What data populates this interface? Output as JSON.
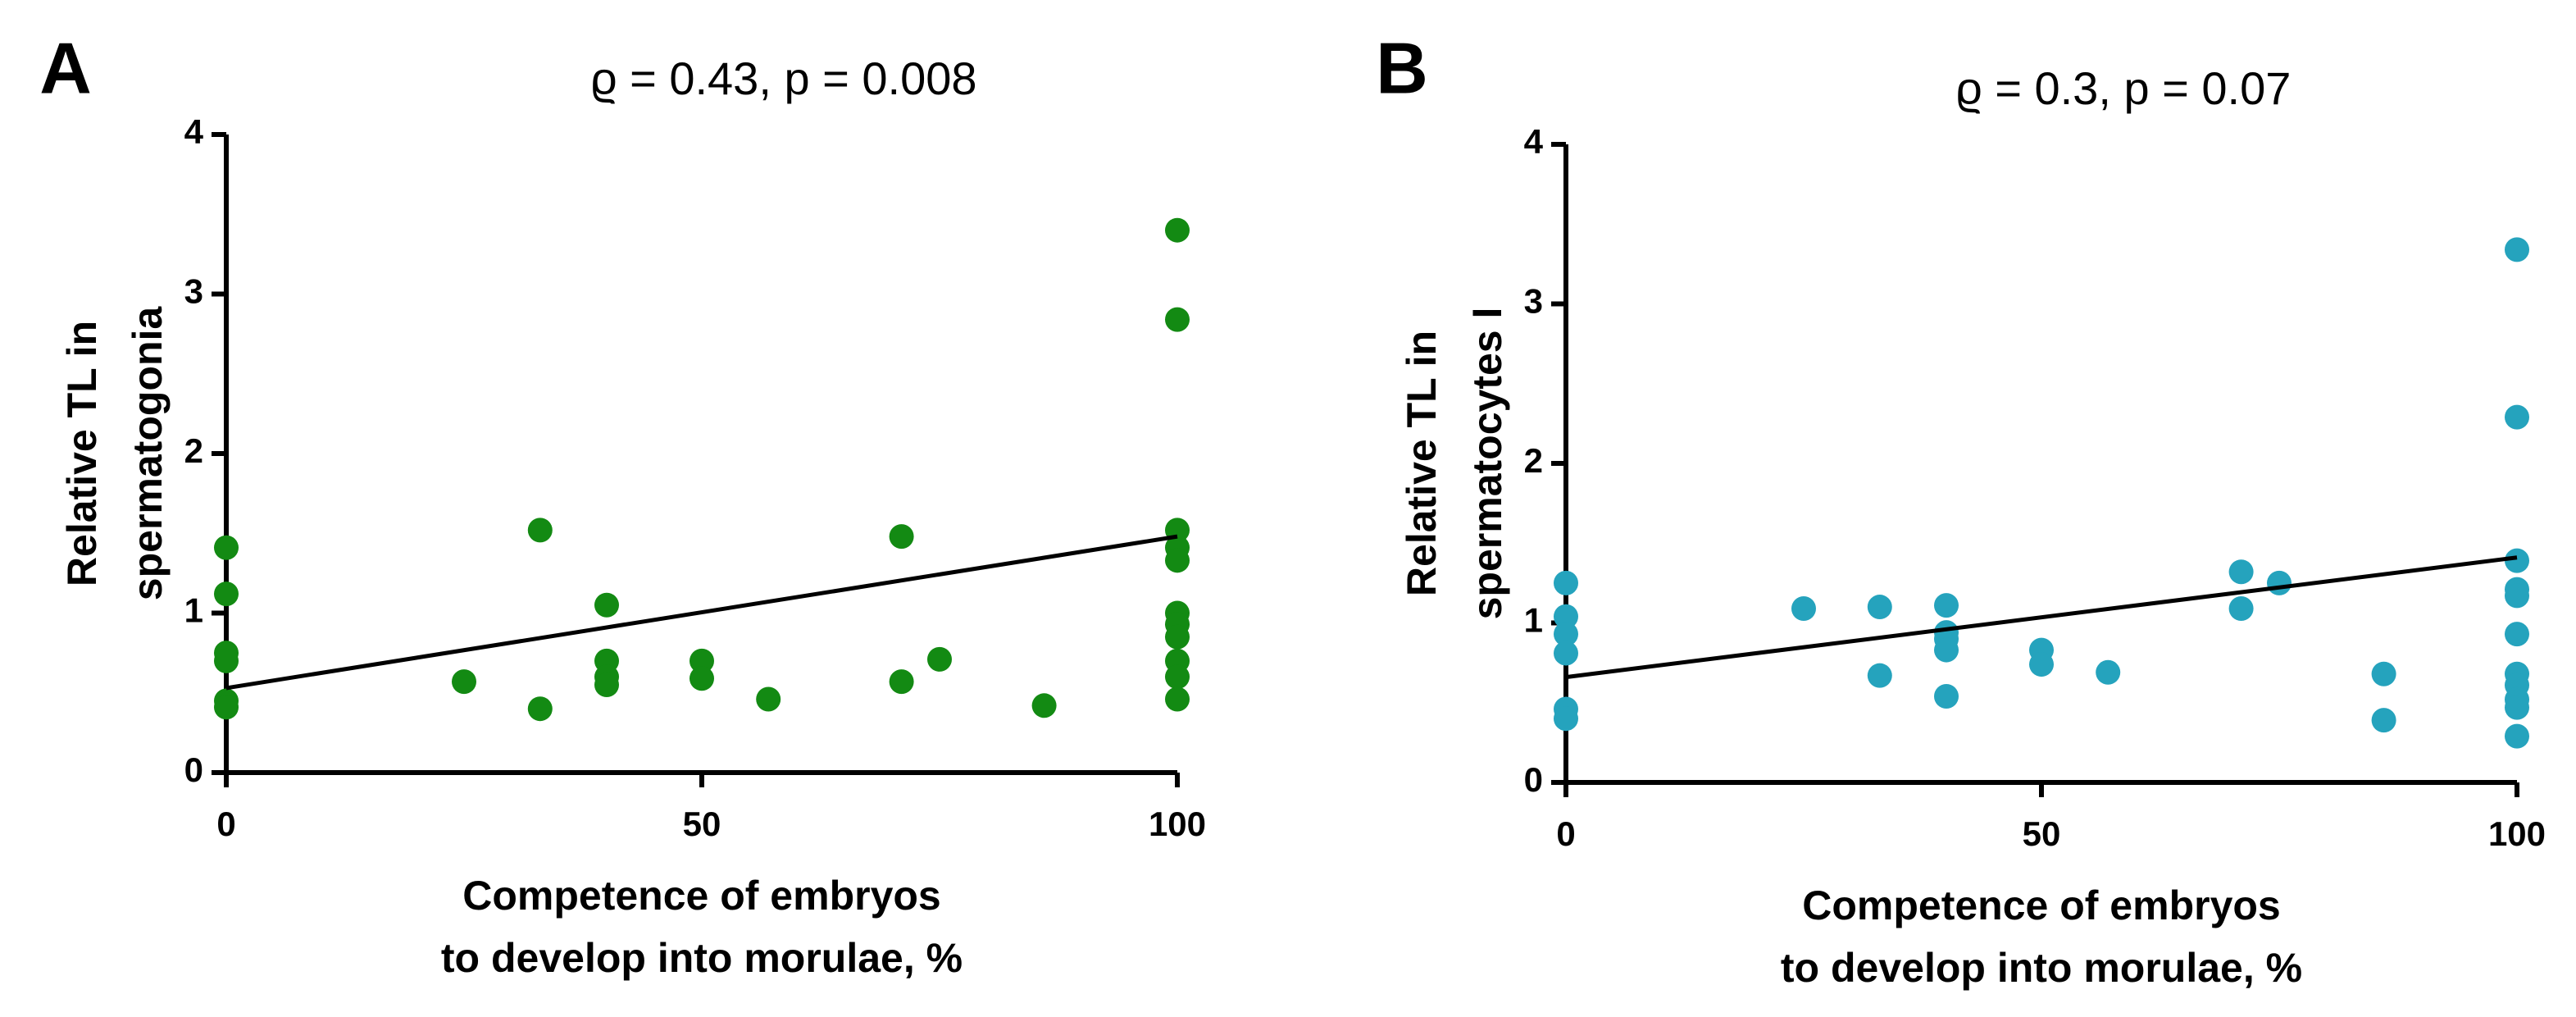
{
  "chart_data": [
    {
      "type": "scatter",
      "panel": "A",
      "title": "ϱ = 0.43, p = 0.008",
      "xlabel": [
        "Competence of embryos",
        "to develop into morulae, %"
      ],
      "ylabel": [
        "Relative TL in",
        "spermatogonia"
      ],
      "color": "#138a13",
      "x": [
        0,
        0,
        0,
        0,
        0,
        0,
        25,
        33,
        33,
        40,
        40,
        40,
        40,
        50,
        50,
        57,
        71,
        71,
        75,
        86,
        100,
        100,
        100,
        100,
        100,
        100,
        100,
        100,
        100,
        100,
        100
      ],
      "values": [
        1.41,
        1.12,
        0.75,
        0.7,
        0.45,
        0.41,
        0.57,
        1.52,
        0.4,
        1.05,
        0.7,
        0.6,
        0.55,
        0.7,
        0.59,
        0.46,
        1.48,
        0.57,
        0.71,
        0.42,
        3.4,
        2.84,
        1.52,
        1.41,
        1.33,
        1.0,
        0.93,
        0.85,
        0.7,
        0.6,
        0.46
      ],
      "fit": {
        "x": [
          0,
          100
        ],
        "y": [
          0.53,
          1.48
        ]
      },
      "xlim": [
        0,
        100
      ],
      "xticks": [
        0,
        50,
        100
      ],
      "ylim": [
        0,
        4
      ],
      "yticks": [
        0,
        1,
        2,
        3,
        4
      ]
    },
    {
      "type": "scatter",
      "panel": "B",
      "title": "ϱ = 0.3, p = 0.07",
      "xlabel": [
        "Competence of embryos",
        "to develop into morulae, %"
      ],
      "ylabel": [
        "Relative TL in",
        "spermatocytes I"
      ],
      "color": "#25a3bd",
      "x": [
        0,
        0,
        0,
        0,
        0,
        0,
        25,
        33,
        33,
        40,
        40,
        40,
        40,
        40,
        50,
        50,
        57,
        71,
        71,
        75,
        86,
        86,
        100,
        100,
        100,
        100,
        100,
        100,
        100,
        100,
        100,
        100,
        100
      ],
      "values": [
        1.25,
        1.04,
        0.93,
        0.81,
        0.46,
        0.4,
        1.09,
        1.1,
        0.67,
        1.11,
        0.94,
        0.9,
        0.83,
        0.54,
        0.83,
        0.74,
        0.69,
        1.32,
        1.09,
        1.25,
        0.68,
        0.39,
        3.34,
        2.29,
        1.39,
        1.21,
        1.17,
        0.93,
        0.68,
        0.61,
        0.52,
        0.47,
        0.29
      ],
      "fit": {
        "x": [
          0,
          100
        ],
        "y": [
          0.66,
          1.41
        ]
      },
      "xlim": [
        0,
        100
      ],
      "xticks": [
        0,
        50,
        100
      ],
      "ylim": [
        0,
        4
      ],
      "yticks": [
        0,
        1,
        2,
        3,
        4
      ]
    }
  ]
}
